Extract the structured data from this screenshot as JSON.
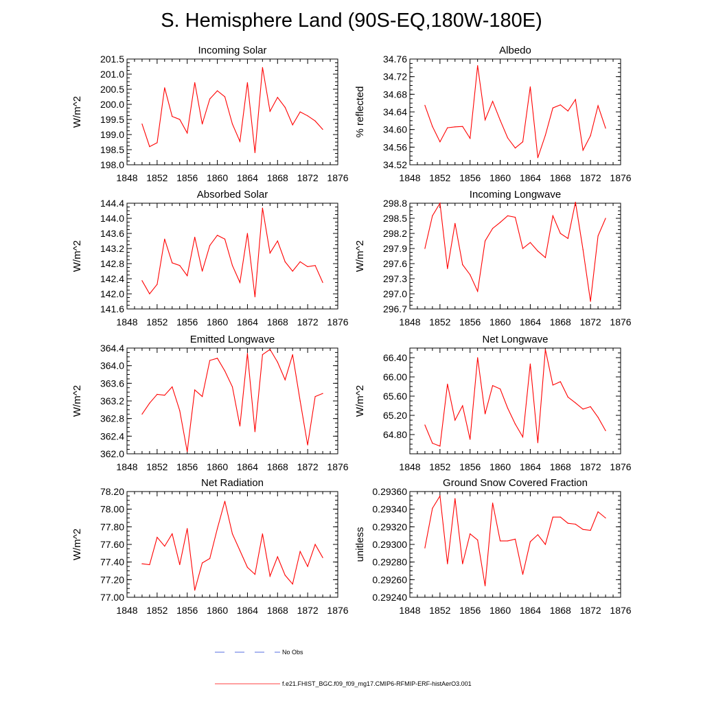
{
  "page_title": "S. Hemisphere Land (90S-EQ,180W-180E)",
  "colors": {
    "series": "#ff0000",
    "no_obs": "#1f3fd6",
    "axis": "#000000"
  },
  "legend": [
    {
      "label": "No Obs",
      "style": "dashed",
      "color": "#1f3fd6"
    },
    {
      "label": "f.e21.FHIST_BGC.f09_f09_mg17.CMIP6-RFMIP-ERF-histAerO3.001",
      "style": "solid",
      "color": "#ff0000"
    }
  ],
  "chart_data": [
    {
      "type": "line",
      "title": "Incoming Solar",
      "ylabel": "W/m^2",
      "xlabel": "",
      "xlim": [
        1848,
        1876
      ],
      "ylim": [
        198.0,
        201.5
      ],
      "xticks": [
        "1848",
        "1852",
        "1856",
        "1860",
        "1864",
        "1868",
        "1872",
        "1876"
      ],
      "yticks": [
        "198.0",
        "198.5",
        "199.0",
        "199.5",
        "200.0",
        "200.5",
        "201.0",
        "201.5"
      ],
      "x": [
        1850,
        1851,
        1852,
        1853,
        1854,
        1855,
        1856,
        1857,
        1858,
        1859,
        1860,
        1861,
        1862,
        1863,
        1864,
        1865,
        1866,
        1867,
        1868,
        1869,
        1870,
        1871,
        1872,
        1873,
        1874
      ],
      "series": [
        {
          "name": "f.e21.FHIST_BGC.f09_f09_mg17.CMIP6-RFMIP-ERF-histAerO3.001",
          "values": [
            199.35,
            198.6,
            198.73,
            200.55,
            199.6,
            199.5,
            199.05,
            200.72,
            199.35,
            200.18,
            200.45,
            200.25,
            199.35,
            198.77,
            200.72,
            198.4,
            201.22,
            199.77,
            200.23,
            199.9,
            199.32,
            199.75,
            199.62,
            199.45,
            199.17
          ]
        }
      ]
    },
    {
      "type": "line",
      "title": "Albedo",
      "ylabel": "% reflected",
      "xlabel": "",
      "xlim": [
        1848,
        1876
      ],
      "ylim": [
        34.52,
        34.76
      ],
      "xticks": [
        "1848",
        "1852",
        "1856",
        "1860",
        "1864",
        "1868",
        "1872",
        "1876"
      ],
      "yticks": [
        "34.52",
        "34.56",
        "34.60",
        "34.64",
        "34.68",
        "34.72",
        "34.76"
      ],
      "x": [
        1850,
        1851,
        1852,
        1853,
        1854,
        1855,
        1856,
        1857,
        1858,
        1859,
        1860,
        1861,
        1862,
        1863,
        1864,
        1865,
        1866,
        1867,
        1868,
        1869,
        1870,
        1871,
        1872,
        1873,
        1874
      ],
      "series": [
        {
          "name": "f.e21.FHIST_BGC.f09_f09_mg17.CMIP6-RFMIP-ERF-histAerO3.001",
          "values": [
            34.655,
            34.607,
            34.572,
            34.604,
            34.606,
            34.607,
            34.58,
            34.745,
            34.622,
            34.664,
            34.621,
            34.581,
            34.558,
            34.572,
            34.697,
            34.536,
            34.587,
            34.649,
            34.656,
            34.642,
            34.668,
            34.553,
            34.586,
            34.654,
            34.603
          ]
        }
      ]
    },
    {
      "type": "line",
      "title": "Absorbed Solar",
      "ylabel": "W/m^2",
      "xlabel": "",
      "xlim": [
        1848,
        1876
      ],
      "ylim": [
        141.6,
        144.4
      ],
      "xticks": [
        "1848",
        "1852",
        "1856",
        "1860",
        "1864",
        "1868",
        "1872",
        "1876"
      ],
      "yticks": [
        "141.6",
        "142.0",
        "142.4",
        "142.8",
        "143.2",
        "143.6",
        "144.0",
        "144.4"
      ],
      "x": [
        1850,
        1851,
        1852,
        1853,
        1854,
        1855,
        1856,
        1857,
        1858,
        1859,
        1860,
        1861,
        1862,
        1863,
        1864,
        1865,
        1866,
        1867,
        1868,
        1869,
        1870,
        1871,
        1872,
        1873,
        1874
      ],
      "series": [
        {
          "name": "f.e21.FHIST_BGC.f09_f09_mg17.CMIP6-RFMIP-ERF-histAerO3.001",
          "values": [
            142.35,
            142.0,
            142.25,
            143.45,
            142.82,
            142.75,
            142.48,
            143.5,
            142.6,
            143.28,
            143.55,
            143.45,
            142.75,
            142.3,
            143.6,
            141.92,
            144.27,
            143.08,
            143.4,
            142.85,
            142.6,
            142.85,
            142.72,
            142.75,
            142.3
          ]
        }
      ]
    },
    {
      "type": "line",
      "title": "Incoming Longwave",
      "ylabel": "W/m^2",
      "xlabel": "",
      "xlim": [
        1848,
        1876
      ],
      "ylim": [
        296.7,
        298.8
      ],
      "xticks": [
        "1848",
        "1852",
        "1856",
        "1860",
        "1864",
        "1868",
        "1872",
        "1876"
      ],
      "yticks": [
        "296.7",
        "297.0",
        "297.3",
        "297.6",
        "297.9",
        "298.2",
        "298.5",
        "298.8"
      ],
      "x": [
        1850,
        1851,
        1852,
        1853,
        1854,
        1855,
        1856,
        1857,
        1858,
        1859,
        1860,
        1861,
        1862,
        1863,
        1864,
        1865,
        1866,
        1867,
        1868,
        1869,
        1870,
        1871,
        1872,
        1873,
        1874
      ],
      "series": [
        {
          "name": "f.e21.FHIST_BGC.f09_f09_mg17.CMIP6-RFMIP-ERF-histAerO3.001",
          "values": [
            297.9,
            298.55,
            298.8,
            297.5,
            298.4,
            297.58,
            297.38,
            297.05,
            298.05,
            298.3,
            298.42,
            298.55,
            298.52,
            297.9,
            298.02,
            297.85,
            297.72,
            298.55,
            298.2,
            298.1,
            298.82,
            297.88,
            296.85,
            298.15,
            298.5
          ]
        }
      ]
    },
    {
      "type": "line",
      "title": "Emitted Longwave",
      "ylabel": "W/m^2",
      "xlabel": "",
      "xlim": [
        1848,
        1876
      ],
      "ylim": [
        362.0,
        364.4
      ],
      "xticks": [
        "1848",
        "1852",
        "1856",
        "1860",
        "1864",
        "1868",
        "1872",
        "1876"
      ],
      "yticks": [
        "362.0",
        "362.4",
        "362.8",
        "363.2",
        "363.6",
        "364.0",
        "364.4"
      ],
      "x": [
        1850,
        1851,
        1852,
        1853,
        1854,
        1855,
        1856,
        1857,
        1858,
        1859,
        1860,
        1861,
        1862,
        1863,
        1864,
        1865,
        1866,
        1867,
        1868,
        1869,
        1870,
        1871,
        1872,
        1873,
        1874
      ],
      "series": [
        {
          "name": "f.e21.FHIST_BGC.f09_f09_mg17.CMIP6-RFMIP-ERF-histAerO3.001",
          "values": [
            362.9,
            363.15,
            363.35,
            363.33,
            363.52,
            362.98,
            362.05,
            363.45,
            363.3,
            364.12,
            364.17,
            363.88,
            363.52,
            362.63,
            364.28,
            362.5,
            364.25,
            364.37,
            364.08,
            363.68,
            364.25,
            363.2,
            362.2,
            363.3,
            363.37
          ]
        }
      ]
    },
    {
      "type": "line",
      "title": "Net Longwave",
      "ylabel": "W/m^2",
      "xlabel": "",
      "xlim": [
        1848,
        1876
      ],
      "ylim": [
        64.4,
        66.6
      ],
      "xticks": [
        "1848",
        "1852",
        "1856",
        "1860",
        "1864",
        "1868",
        "1872",
        "1876"
      ],
      "yticks": [
        "64.80",
        "65.20",
        "65.60",
        "66.00",
        "66.40"
      ],
      "x": [
        1850,
        1851,
        1852,
        1853,
        1854,
        1855,
        1856,
        1857,
        1858,
        1859,
        1860,
        1861,
        1862,
        1863,
        1864,
        1865,
        1866,
        1867,
        1868,
        1869,
        1870,
        1871,
        1872,
        1873,
        1874
      ],
      "series": [
        {
          "name": "f.e21.FHIST_BGC.f09_f09_mg17.CMIP6-RFMIP-ERF-histAerO3.001",
          "values": [
            65.0,
            64.62,
            64.56,
            65.85,
            65.1,
            65.4,
            64.7,
            66.4,
            65.23,
            65.82,
            65.75,
            65.35,
            65.02,
            64.75,
            66.27,
            64.63,
            66.57,
            65.83,
            65.9,
            65.58,
            65.46,
            65.33,
            65.38,
            65.16,
            64.88
          ]
        }
      ]
    },
    {
      "type": "line",
      "title": "Net Radiation",
      "ylabel": "W/m^2",
      "xlabel": "",
      "xlim": [
        1848,
        1876
      ],
      "ylim": [
        77.0,
        78.2
      ],
      "xticks": [
        "1848",
        "1852",
        "1856",
        "1860",
        "1864",
        "1868",
        "1872",
        "1876"
      ],
      "yticks": [
        "77.00",
        "77.20",
        "77.40",
        "77.60",
        "77.80",
        "78.00",
        "78.20"
      ],
      "x": [
        1850,
        1851,
        1852,
        1853,
        1854,
        1855,
        1856,
        1857,
        1858,
        1859,
        1860,
        1861,
        1862,
        1863,
        1864,
        1865,
        1866,
        1867,
        1868,
        1869,
        1870,
        1871,
        1872,
        1873,
        1874
      ],
      "series": [
        {
          "name": "f.e21.FHIST_BGC.f09_f09_mg17.CMIP6-RFMIP-ERF-histAerO3.001",
          "values": [
            77.38,
            77.37,
            77.68,
            77.58,
            77.72,
            77.37,
            77.78,
            77.08,
            77.39,
            77.44,
            77.78,
            78.09,
            77.72,
            77.53,
            77.34,
            77.26,
            77.72,
            77.24,
            77.46,
            77.25,
            77.15,
            77.52,
            77.35,
            77.6,
            77.45
          ]
        }
      ]
    },
    {
      "type": "line",
      "title": "Ground Snow Covered Fraction",
      "ylabel": "unitless",
      "xlabel": "",
      "xlim": [
        1848,
        1876
      ],
      "ylim": [
        0.2924,
        0.2936
      ],
      "xticks": [
        "1848",
        "1852",
        "1856",
        "1860",
        "1864",
        "1868",
        "1872",
        "1876"
      ],
      "yticks": [
        "0.29240",
        "0.29260",
        "0.29280",
        "0.29300",
        "0.29320",
        "0.29340",
        "0.29360"
      ],
      "x": [
        1850,
        1851,
        1852,
        1853,
        1854,
        1855,
        1856,
        1857,
        1858,
        1859,
        1860,
        1861,
        1862,
        1863,
        1864,
        1865,
        1866,
        1867,
        1868,
        1869,
        1870,
        1871,
        1872,
        1873,
        1874
      ],
      "series": [
        {
          "name": "f.e21.FHIST_BGC.f09_f09_mg17.CMIP6-RFMIP-ERF-histAerO3.001",
          "values": [
            0.29296,
            0.29341,
            0.29355,
            0.29278,
            0.29352,
            0.29278,
            0.29312,
            0.29305,
            0.29253,
            0.29347,
            0.29304,
            0.29304,
            0.29306,
            0.29266,
            0.29303,
            0.29311,
            0.293,
            0.29331,
            0.29331,
            0.29324,
            0.29323,
            0.29317,
            0.29316,
            0.29337,
            0.2933
          ]
        }
      ]
    }
  ]
}
